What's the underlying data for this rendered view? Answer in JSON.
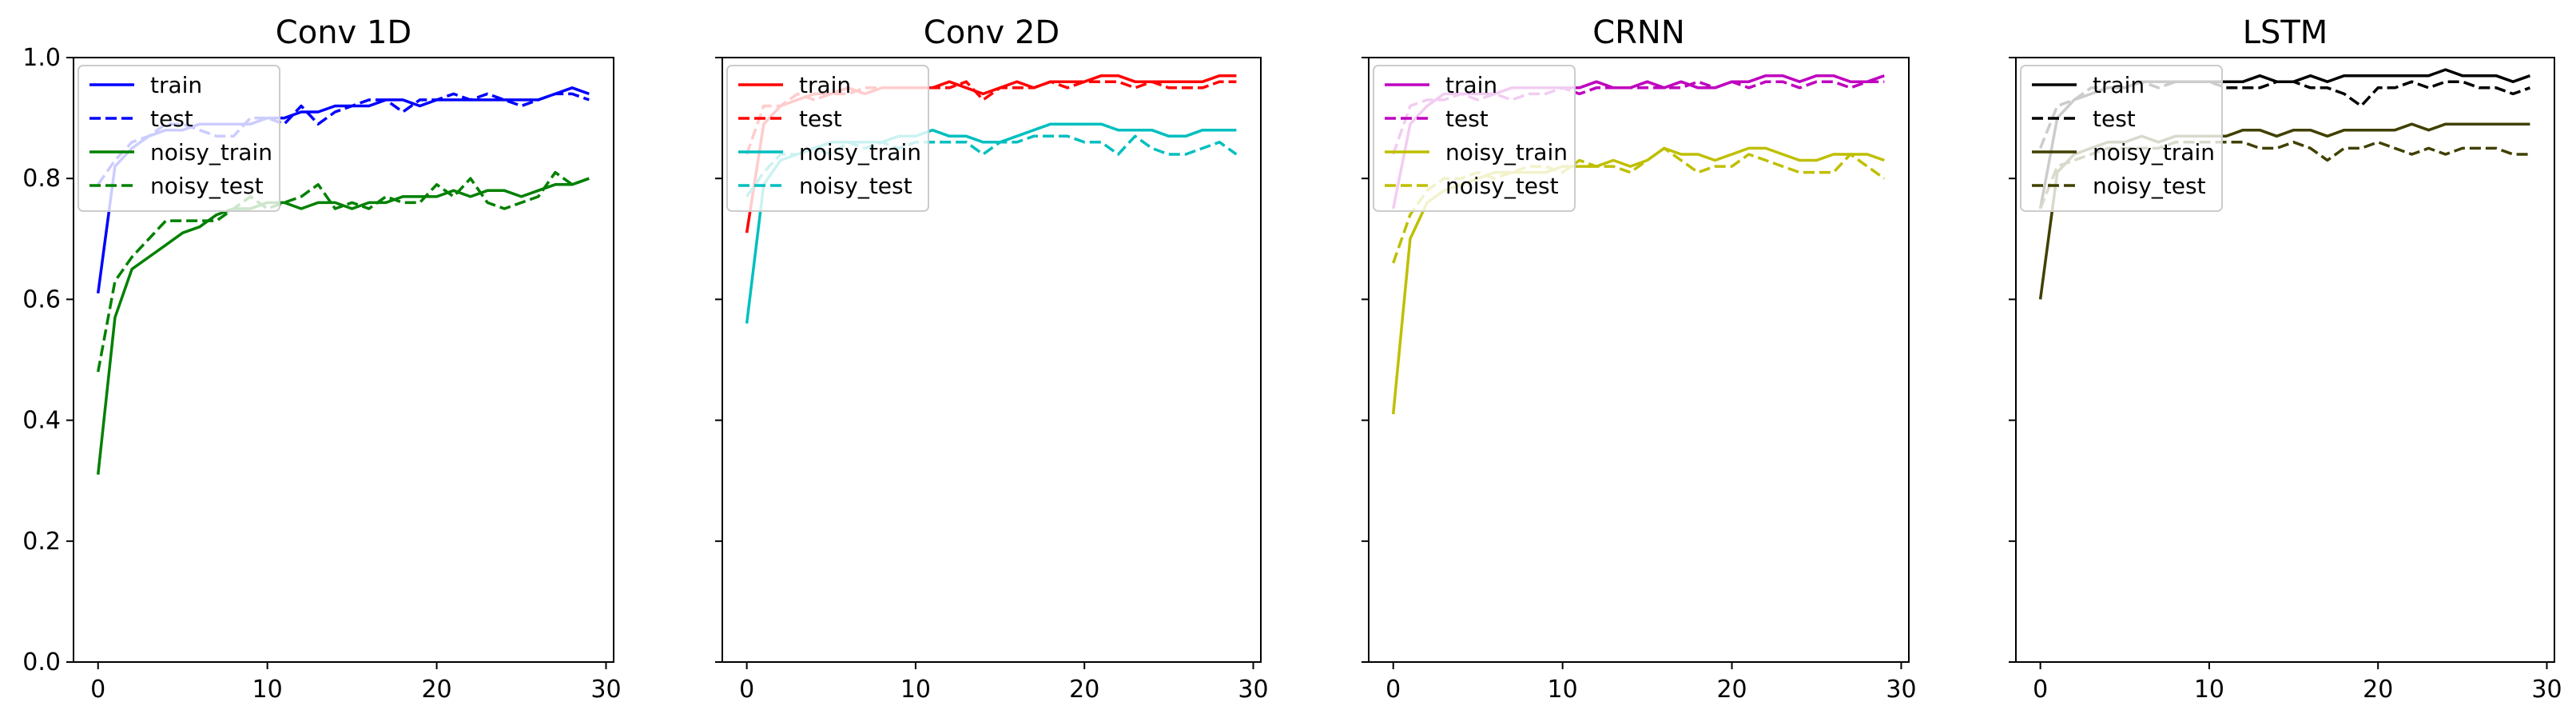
{
  "chart_data": [
    {
      "type": "line",
      "title": "Conv 1D",
      "xlim": [
        -1.45,
        30.45
      ],
      "ylim": [
        0,
        1
      ],
      "xticks": [
        0,
        10,
        20,
        30
      ],
      "yticks": [
        0.0,
        0.2,
        0.4,
        0.6,
        0.8,
        1.0
      ],
      "show_y_ticklabels": true,
      "grid": false,
      "legend_position": "top-left",
      "x": [
        0,
        1,
        2,
        3,
        4,
        5,
        6,
        7,
        8,
        9,
        10,
        11,
        12,
        13,
        14,
        15,
        16,
        17,
        18,
        19,
        20,
        21,
        22,
        23,
        24,
        25,
        26,
        27,
        28,
        29
      ],
      "series": [
        {
          "name": "train",
          "color": "#0000ff",
          "style": "solid",
          "values": [
            0.61,
            0.82,
            0.85,
            0.87,
            0.88,
            0.88,
            0.89,
            0.89,
            0.89,
            0.89,
            0.9,
            0.9,
            0.91,
            0.91,
            0.92,
            0.92,
            0.92,
            0.93,
            0.93,
            0.92,
            0.93,
            0.93,
            0.93,
            0.93,
            0.93,
            0.93,
            0.93,
            0.94,
            0.95,
            0.94
          ]
        },
        {
          "name": "test",
          "color": "#0000ff",
          "style": "dashed",
          "values": [
            0.79,
            0.83,
            0.86,
            0.87,
            0.89,
            0.89,
            0.88,
            0.87,
            0.87,
            0.9,
            0.9,
            0.89,
            0.92,
            0.89,
            0.91,
            0.92,
            0.93,
            0.93,
            0.91,
            0.93,
            0.93,
            0.94,
            0.93,
            0.94,
            0.93,
            0.92,
            0.93,
            0.94,
            0.94,
            0.93
          ]
        },
        {
          "name": "noisy_train",
          "color": "#008000",
          "style": "solid",
          "values": [
            0.31,
            0.57,
            0.65,
            0.67,
            0.69,
            0.71,
            0.72,
            0.74,
            0.75,
            0.75,
            0.76,
            0.76,
            0.75,
            0.76,
            0.76,
            0.75,
            0.76,
            0.76,
            0.77,
            0.77,
            0.77,
            0.78,
            0.77,
            0.78,
            0.78,
            0.77,
            0.78,
            0.79,
            0.79,
            0.8
          ]
        },
        {
          "name": "noisy_test",
          "color": "#008000",
          "style": "dashed",
          "values": [
            0.48,
            0.63,
            0.67,
            0.7,
            0.73,
            0.73,
            0.73,
            0.73,
            0.75,
            0.77,
            0.75,
            0.76,
            0.77,
            0.79,
            0.75,
            0.76,
            0.75,
            0.77,
            0.76,
            0.76,
            0.79,
            0.77,
            0.8,
            0.76,
            0.75,
            0.76,
            0.77,
            0.81,
            0.79,
            0.8
          ]
        }
      ]
    },
    {
      "type": "line",
      "title": "Conv 2D",
      "xlim": [
        -1.45,
        30.45
      ],
      "ylim": [
        0,
        1
      ],
      "xticks": [
        0,
        10,
        20,
        30
      ],
      "yticks": [
        0.0,
        0.2,
        0.4,
        0.6,
        0.8,
        1.0
      ],
      "show_y_ticklabels": false,
      "grid": false,
      "legend_position": "top-left",
      "x": [
        0,
        1,
        2,
        3,
        4,
        5,
        6,
        7,
        8,
        9,
        10,
        11,
        12,
        13,
        14,
        15,
        16,
        17,
        18,
        19,
        20,
        21,
        22,
        23,
        24,
        25,
        26,
        27,
        28,
        29
      ],
      "series": [
        {
          "name": "train",
          "color": "#ff0000",
          "style": "solid",
          "values": [
            0.71,
            0.89,
            0.92,
            0.93,
            0.94,
            0.94,
            0.95,
            0.94,
            0.95,
            0.95,
            0.95,
            0.95,
            0.96,
            0.95,
            0.94,
            0.95,
            0.96,
            0.95,
            0.96,
            0.96,
            0.96,
            0.97,
            0.97,
            0.96,
            0.96,
            0.96,
            0.96,
            0.96,
            0.97,
            0.97
          ]
        },
        {
          "name": "test",
          "color": "#ff0000",
          "style": "dashed",
          "values": [
            0.84,
            0.92,
            0.92,
            0.94,
            0.93,
            0.94,
            0.94,
            0.95,
            0.95,
            0.95,
            0.95,
            0.95,
            0.95,
            0.96,
            0.93,
            0.95,
            0.95,
            0.95,
            0.96,
            0.95,
            0.96,
            0.96,
            0.96,
            0.95,
            0.96,
            0.95,
            0.95,
            0.95,
            0.96,
            0.96
          ]
        },
        {
          "name": "noisy_train",
          "color": "#00bfbf",
          "style": "solid",
          "values": [
            0.56,
            0.79,
            0.83,
            0.84,
            0.85,
            0.86,
            0.86,
            0.86,
            0.86,
            0.87,
            0.87,
            0.88,
            0.87,
            0.87,
            0.86,
            0.86,
            0.87,
            0.88,
            0.89,
            0.89,
            0.89,
            0.89,
            0.88,
            0.88,
            0.88,
            0.87,
            0.87,
            0.88,
            0.88,
            0.88
          ]
        },
        {
          "name": "noisy_test",
          "color": "#00bfbf",
          "style": "dashed",
          "values": [
            0.77,
            0.81,
            0.84,
            0.84,
            0.85,
            0.84,
            0.86,
            0.85,
            0.86,
            0.85,
            0.86,
            0.86,
            0.86,
            0.86,
            0.84,
            0.86,
            0.86,
            0.87,
            0.87,
            0.87,
            0.86,
            0.86,
            0.84,
            0.87,
            0.85,
            0.84,
            0.84,
            0.85,
            0.86,
            0.84
          ]
        }
      ]
    },
    {
      "type": "line",
      "title": "CRNN",
      "xlim": [
        -1.45,
        30.45
      ],
      "ylim": [
        0,
        1
      ],
      "xticks": [
        0,
        10,
        20,
        30
      ],
      "yticks": [
        0.0,
        0.2,
        0.4,
        0.6,
        0.8,
        1.0
      ],
      "show_y_ticklabels": false,
      "grid": false,
      "legend_position": "top-left",
      "x": [
        0,
        1,
        2,
        3,
        4,
        5,
        6,
        7,
        8,
        9,
        10,
        11,
        12,
        13,
        14,
        15,
        16,
        17,
        18,
        19,
        20,
        21,
        22,
        23,
        24,
        25,
        26,
        27,
        28,
        29
      ],
      "series": [
        {
          "name": "train",
          "color": "#bf00bf",
          "style": "solid",
          "values": [
            0.75,
            0.89,
            0.92,
            0.94,
            0.94,
            0.94,
            0.94,
            0.95,
            0.95,
            0.95,
            0.95,
            0.95,
            0.96,
            0.95,
            0.95,
            0.96,
            0.95,
            0.96,
            0.95,
            0.95,
            0.96,
            0.96,
            0.97,
            0.97,
            0.96,
            0.97,
            0.97,
            0.96,
            0.96,
            0.97
          ]
        },
        {
          "name": "test",
          "color": "#bf00bf",
          "style": "dashed",
          "values": [
            0.84,
            0.92,
            0.93,
            0.93,
            0.94,
            0.93,
            0.94,
            0.93,
            0.94,
            0.94,
            0.95,
            0.94,
            0.95,
            0.95,
            0.95,
            0.95,
            0.95,
            0.95,
            0.96,
            0.95,
            0.96,
            0.95,
            0.96,
            0.96,
            0.95,
            0.96,
            0.96,
            0.95,
            0.96,
            0.96
          ]
        },
        {
          "name": "noisy_train",
          "color": "#bfbf00",
          "style": "solid",
          "values": [
            0.41,
            0.7,
            0.76,
            0.78,
            0.79,
            0.8,
            0.81,
            0.81,
            0.81,
            0.81,
            0.82,
            0.82,
            0.82,
            0.83,
            0.82,
            0.83,
            0.85,
            0.84,
            0.84,
            0.83,
            0.84,
            0.85,
            0.85,
            0.84,
            0.83,
            0.83,
            0.84,
            0.84,
            0.84,
            0.83
          ]
        },
        {
          "name": "noisy_test",
          "color": "#bfbf00",
          "style": "dashed",
          "values": [
            0.66,
            0.74,
            0.78,
            0.8,
            0.8,
            0.81,
            0.8,
            0.81,
            0.82,
            0.82,
            0.81,
            0.83,
            0.82,
            0.82,
            0.81,
            0.83,
            0.85,
            0.83,
            0.81,
            0.82,
            0.82,
            0.84,
            0.83,
            0.82,
            0.81,
            0.81,
            0.81,
            0.84,
            0.82,
            0.8
          ]
        }
      ]
    },
    {
      "type": "line",
      "title": "LSTM",
      "xlim": [
        -1.45,
        30.45
      ],
      "ylim": [
        0,
        1
      ],
      "xticks": [
        0,
        10,
        20,
        30
      ],
      "yticks": [
        0.0,
        0.2,
        0.4,
        0.6,
        0.8,
        1.0
      ],
      "show_y_ticklabels": false,
      "grid": false,
      "legend_position": "top-left",
      "x": [
        0,
        1,
        2,
        3,
        4,
        5,
        6,
        7,
        8,
        9,
        10,
        11,
        12,
        13,
        14,
        15,
        16,
        17,
        18,
        19,
        20,
        21,
        22,
        23,
        24,
        25,
        26,
        27,
        28,
        29
      ],
      "series": [
        {
          "name": "train",
          "color": "#000000",
          "style": "solid",
          "values": [
            0.75,
            0.9,
            0.93,
            0.94,
            0.95,
            0.95,
            0.96,
            0.96,
            0.96,
            0.96,
            0.96,
            0.96,
            0.96,
            0.97,
            0.96,
            0.96,
            0.97,
            0.96,
            0.97,
            0.97,
            0.97,
            0.97,
            0.97,
            0.97,
            0.98,
            0.97,
            0.97,
            0.97,
            0.96,
            0.97
          ]
        },
        {
          "name": "test",
          "color": "#000000",
          "style": "dashed",
          "values": [
            0.85,
            0.92,
            0.93,
            0.95,
            0.95,
            0.95,
            0.96,
            0.95,
            0.96,
            0.96,
            0.96,
            0.95,
            0.95,
            0.95,
            0.96,
            0.96,
            0.95,
            0.95,
            0.94,
            0.92,
            0.95,
            0.95,
            0.96,
            0.95,
            0.96,
            0.96,
            0.95,
            0.95,
            0.94,
            0.95
          ]
        },
        {
          "name": "noisy_train",
          "color": "#404000",
          "style": "solid",
          "values": [
            0.6,
            0.81,
            0.84,
            0.85,
            0.86,
            0.86,
            0.87,
            0.86,
            0.87,
            0.87,
            0.87,
            0.87,
            0.88,
            0.88,
            0.87,
            0.88,
            0.88,
            0.87,
            0.88,
            0.88,
            0.88,
            0.88,
            0.89,
            0.88,
            0.89,
            0.89,
            0.89,
            0.89,
            0.89,
            0.89
          ]
        },
        {
          "name": "noisy_test",
          "color": "#404000",
          "style": "dashed",
          "values": [
            0.75,
            0.82,
            0.83,
            0.84,
            0.85,
            0.85,
            0.85,
            0.85,
            0.86,
            0.86,
            0.86,
            0.86,
            0.86,
            0.85,
            0.85,
            0.86,
            0.85,
            0.83,
            0.85,
            0.85,
            0.86,
            0.85,
            0.84,
            0.85,
            0.84,
            0.85,
            0.85,
            0.85,
            0.84,
            0.84
          ]
        }
      ]
    }
  ]
}
